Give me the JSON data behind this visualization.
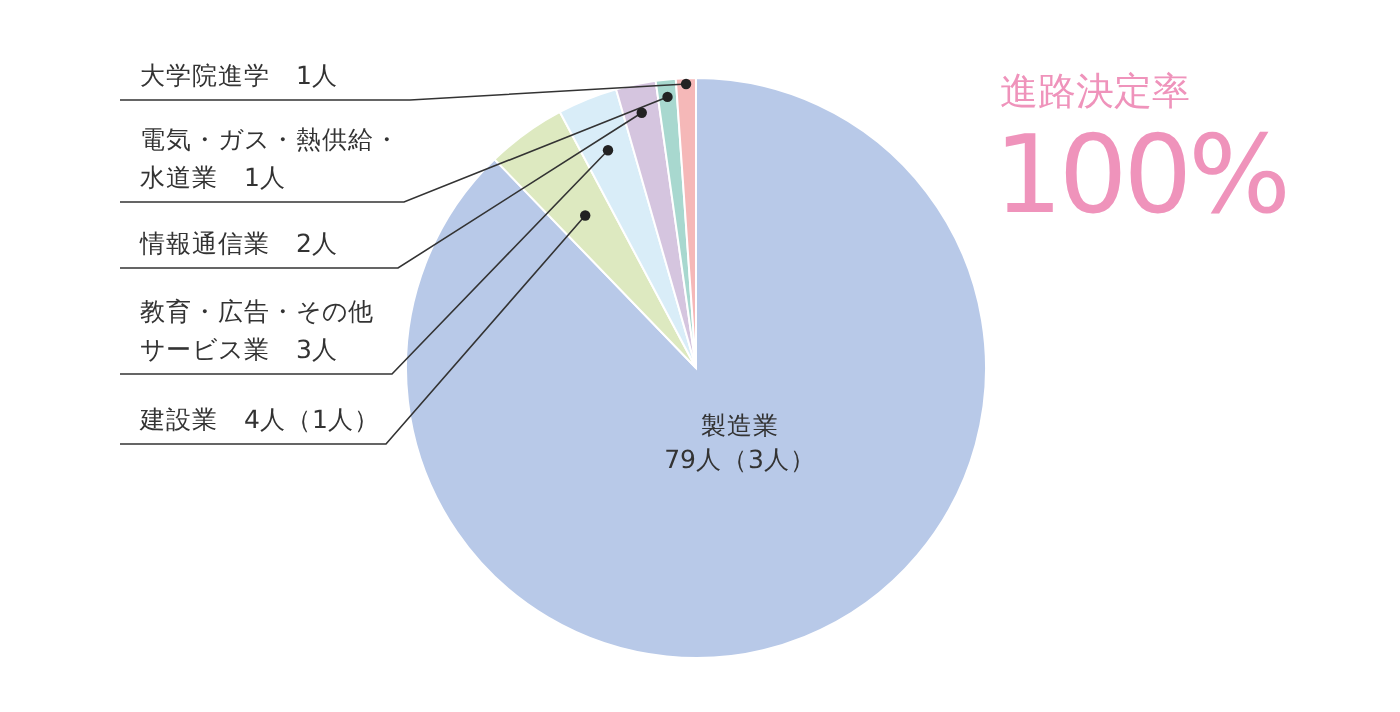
{
  "chart_data": {
    "type": "pie",
    "title": "進路決定率",
    "annotations": [
      "100%"
    ],
    "categories": [
      "製造業",
      "建設業",
      "教育・広告・その他サービス業",
      "情報通信業",
      "電気・ガス・熱供給・水道業",
      "大学院進学"
    ],
    "values": [
      79,
      4,
      3,
      2,
      1,
      1
    ],
    "value_labels": [
      "79人（3人）",
      "4人（1人）",
      "3人",
      "2人",
      "1人",
      "1人"
    ],
    "colors": [
      "#b8c9e8",
      "#dde9c0",
      "#d9edf8",
      "#d5c5df",
      "#a8d8cf",
      "#f5b8b8"
    ]
  }
}
